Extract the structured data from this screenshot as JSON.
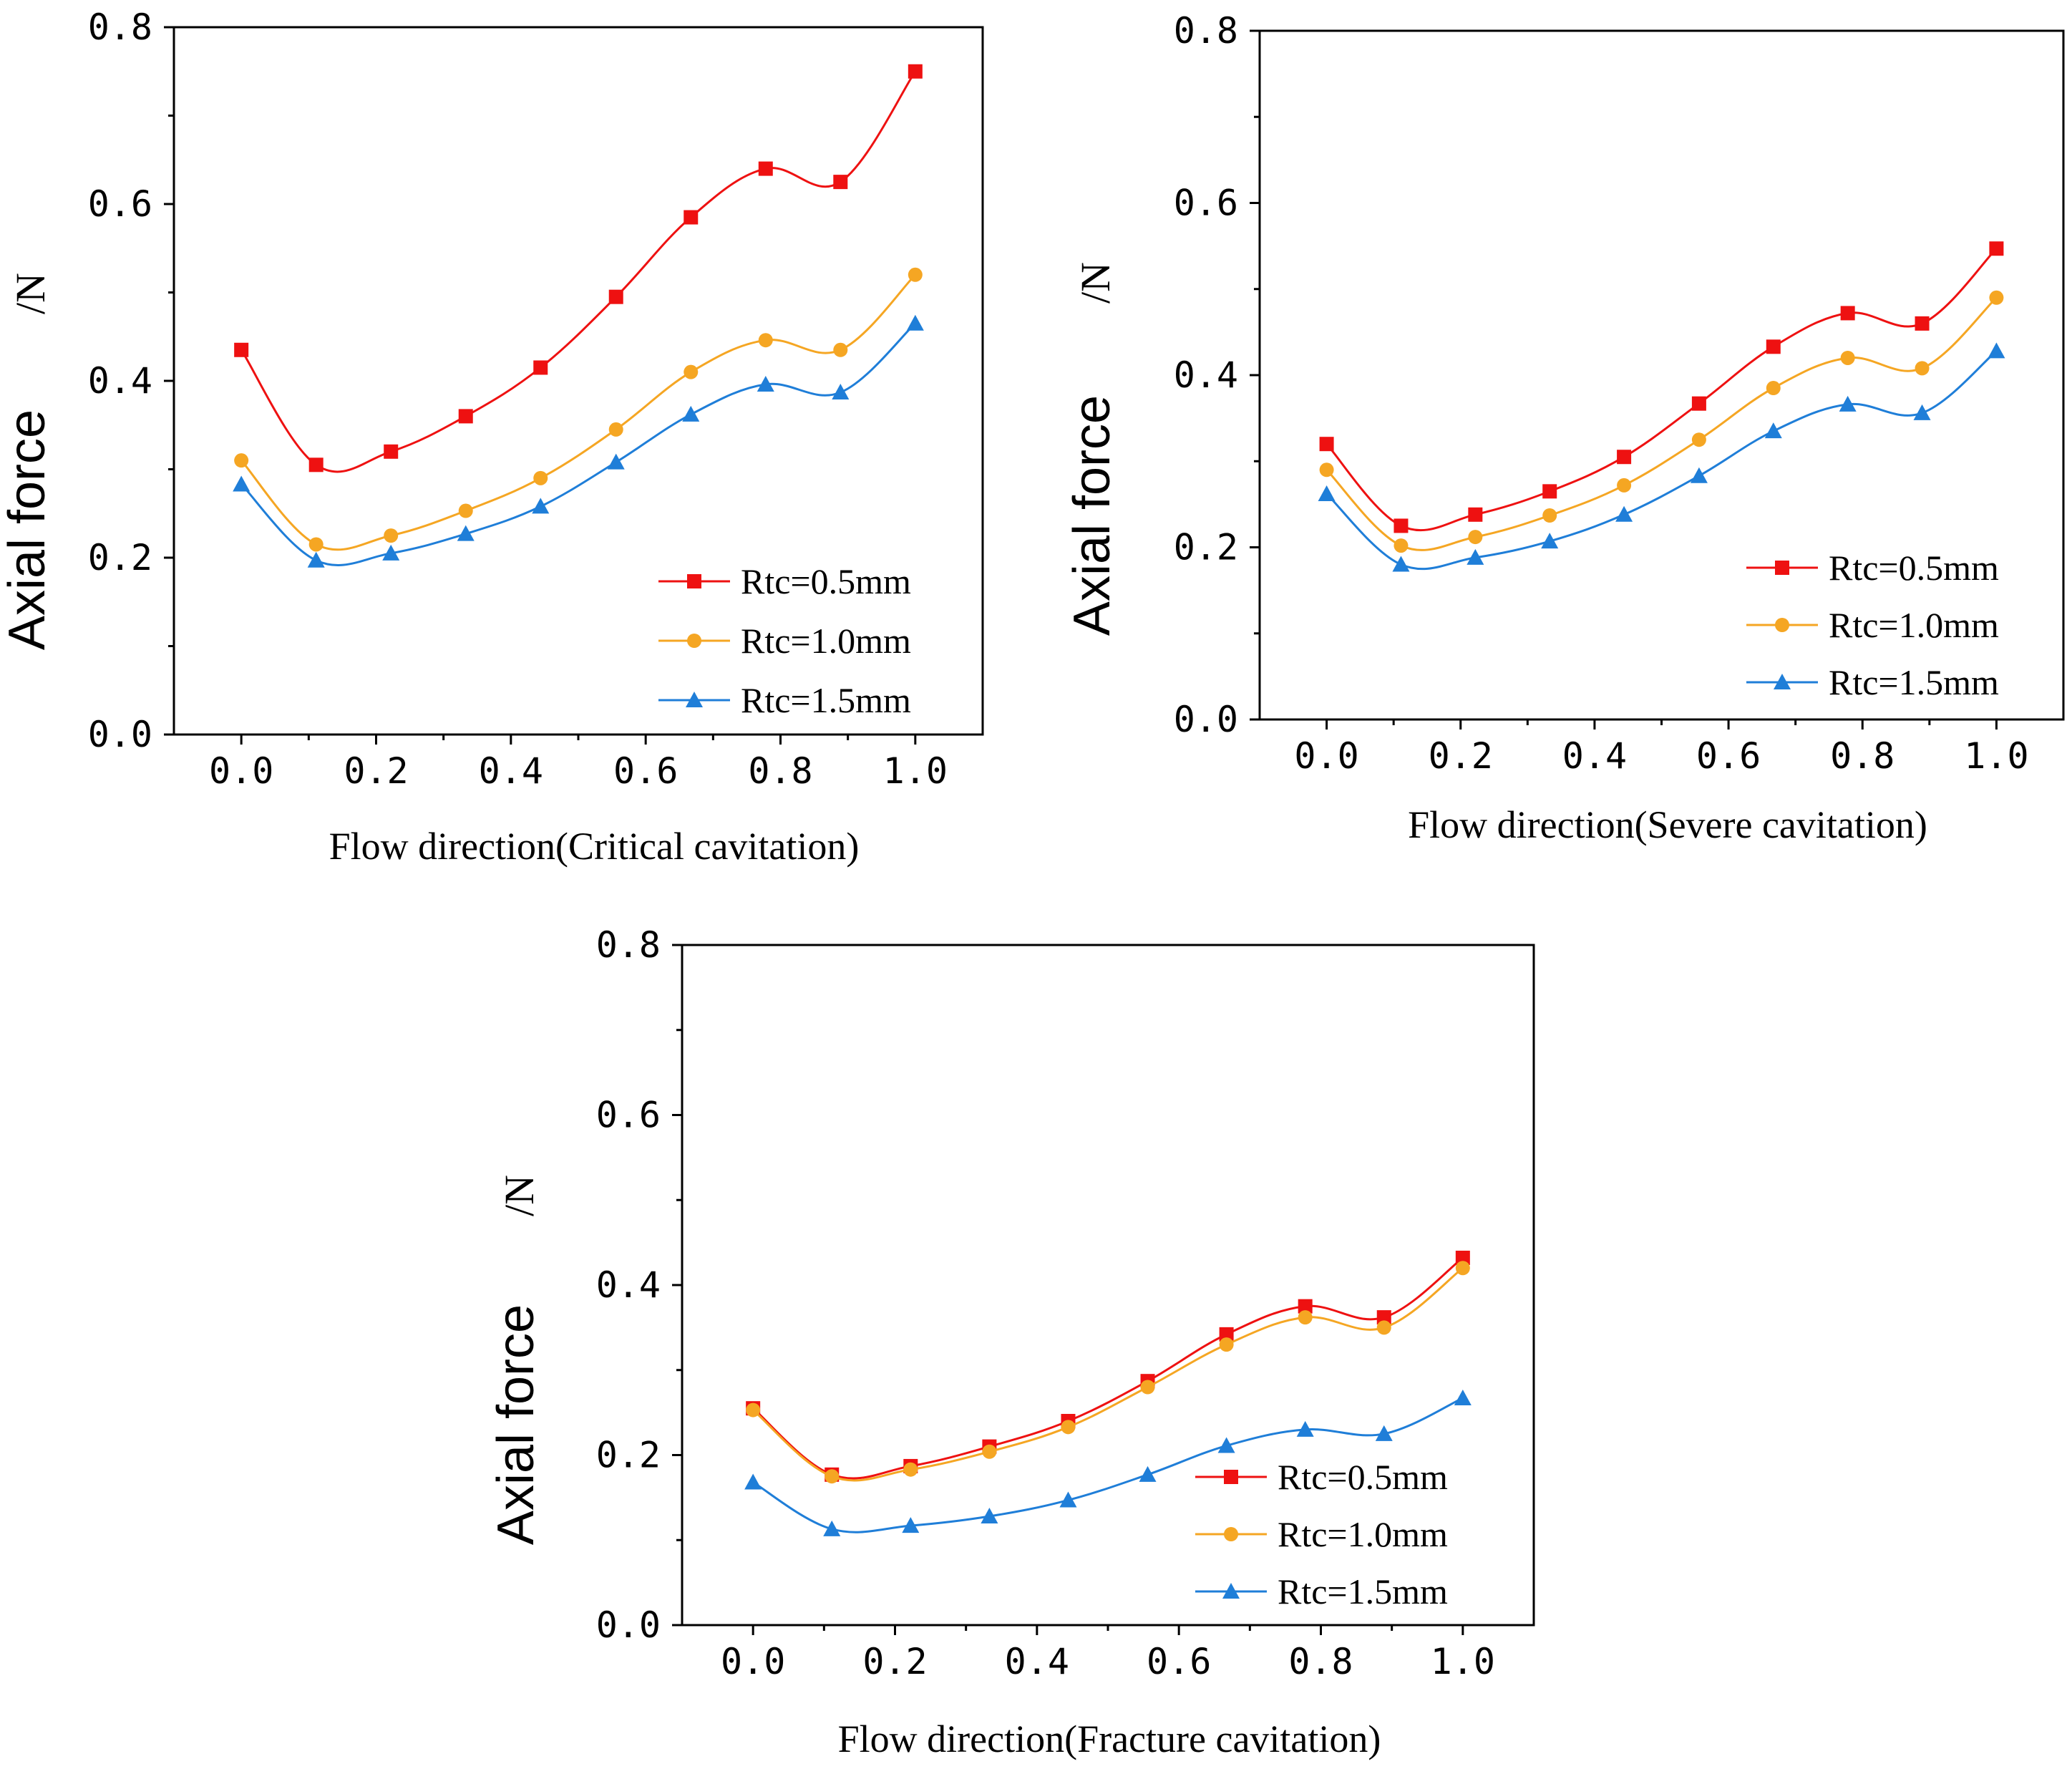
{
  "chart_data": [
    {
      "type": "line",
      "title": "",
      "xlabel": "Flow direction(Critical cavitation)",
      "ylabel": "Axial force",
      "ylabel_unit": "/N",
      "xlim": [
        -0.1,
        1.1
      ],
      "ylim": [
        0.0,
        0.8
      ],
      "x_ticks": [
        "0.0",
        "0.2",
        "0.4",
        "0.6",
        "0.8",
        "1.0"
      ],
      "y_ticks": [
        "0.0",
        "0.2",
        "0.4",
        "0.6",
        "0.8"
      ],
      "legend_position": "bottom-right",
      "x": [
        0.0,
        0.111,
        0.222,
        0.333,
        0.444,
        0.556,
        0.667,
        0.778,
        0.889,
        1.0
      ],
      "series": [
        {
          "name": "Rtc=0.5mm",
          "color": "#ee1111",
          "marker": "square",
          "values": [
            0.435,
            0.305,
            0.32,
            0.36,
            0.415,
            0.495,
            0.585,
            0.64,
            0.625,
            0.75
          ]
        },
        {
          "name": "Rtc=1.0mm",
          "color": "#f5a623",
          "marker": "circle",
          "values": [
            0.31,
            0.215,
            0.225,
            0.253,
            0.29,
            0.345,
            0.41,
            0.446,
            0.435,
            0.52
          ]
        },
        {
          "name": "Rtc=1.5mm",
          "color": "#1f7ed8",
          "marker": "triangle",
          "values": [
            0.283,
            0.197,
            0.205,
            0.227,
            0.258,
            0.308,
            0.362,
            0.396,
            0.387,
            0.465
          ]
        }
      ]
    },
    {
      "type": "line",
      "title": "",
      "xlabel": "Flow direction(Severe cavitation)",
      "ylabel": "Axial force",
      "ylabel_unit": "/N",
      "xlim": [
        -0.1,
        1.1
      ],
      "ylim": [
        0.0,
        0.8
      ],
      "x_ticks": [
        "0.0",
        "0.2",
        "0.4",
        "0.6",
        "0.8",
        "1.0"
      ],
      "y_ticks": [
        "0.0",
        "0.2",
        "0.4",
        "0.6",
        "0.8"
      ],
      "legend_position": "bottom-right",
      "x": [
        0.0,
        0.111,
        0.222,
        0.333,
        0.444,
        0.556,
        0.667,
        0.778,
        0.889,
        1.0
      ],
      "series": [
        {
          "name": "Rtc=0.5mm",
          "color": "#ee1111",
          "marker": "square",
          "values": [
            0.32,
            0.225,
            0.238,
            0.265,
            0.305,
            0.367,
            0.433,
            0.472,
            0.46,
            0.547
          ]
        },
        {
          "name": "Rtc=1.0mm",
          "color": "#f5a623",
          "marker": "circle",
          "values": [
            0.29,
            0.202,
            0.212,
            0.237,
            0.272,
            0.325,
            0.385,
            0.42,
            0.408,
            0.49
          ]
        },
        {
          "name": "Rtc=1.5mm",
          "color": "#1f7ed8",
          "marker": "triangle",
          "values": [
            0.262,
            0.18,
            0.188,
            0.207,
            0.238,
            0.283,
            0.335,
            0.366,
            0.356,
            0.428
          ]
        }
      ]
    },
    {
      "type": "line",
      "title": "",
      "xlabel": "Flow direction(Fracture cavitation)",
      "ylabel": "Axial force",
      "ylabel_unit": "/N",
      "xlim": [
        -0.1,
        1.1
      ],
      "ylim": [
        0.0,
        0.8
      ],
      "x_ticks": [
        "0.0",
        "0.2",
        "0.4",
        "0.6",
        "0.8",
        "1.0"
      ],
      "y_ticks": [
        "0.0",
        "0.2",
        "0.4",
        "0.6",
        "0.8"
      ],
      "legend_position": "bottom-right",
      "x": [
        0.0,
        0.111,
        0.222,
        0.333,
        0.444,
        0.556,
        0.667,
        0.778,
        0.889,
        1.0
      ],
      "series": [
        {
          "name": "Rtc=0.5mm",
          "color": "#ee1111",
          "marker": "square",
          "values": [
            0.255,
            0.177,
            0.187,
            0.21,
            0.24,
            0.287,
            0.342,
            0.375,
            0.362,
            0.432
          ]
        },
        {
          "name": "Rtc=1.0mm",
          "color": "#f5a623",
          "marker": "circle",
          "values": [
            0.253,
            0.175,
            0.183,
            0.204,
            0.233,
            0.28,
            0.33,
            0.362,
            0.35,
            0.42
          ]
        },
        {
          "name": "Rtc=1.5mm",
          "color": "#1f7ed8",
          "marker": "triangle",
          "values": [
            0.168,
            0.113,
            0.117,
            0.128,
            0.147,
            0.177,
            0.211,
            0.23,
            0.225,
            0.267
          ]
        }
      ]
    }
  ]
}
